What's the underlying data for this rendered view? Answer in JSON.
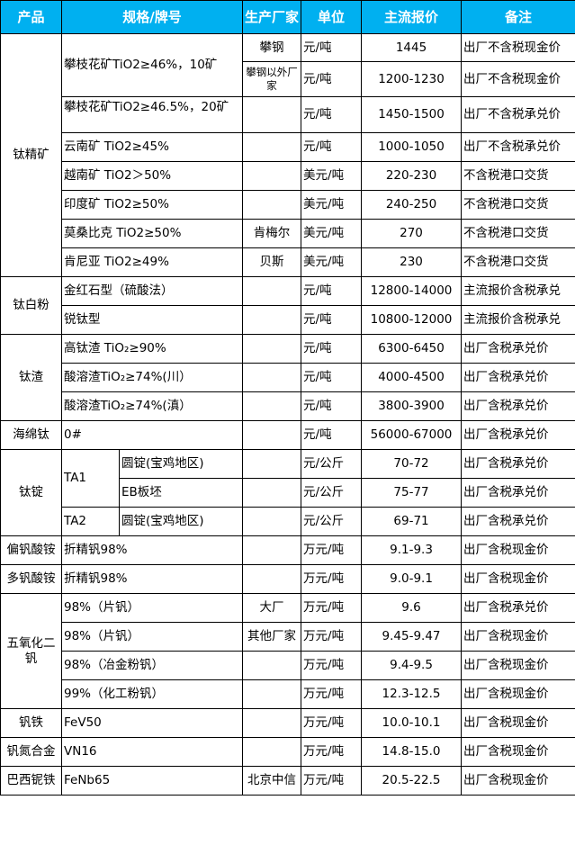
{
  "header": {
    "product": "产品",
    "spec": "规格/牌号",
    "maker": "生产厂家",
    "unit": "单位",
    "price": "主流报价",
    "note": "备注"
  },
  "header_color": "#00b0f0",
  "rows": [
    {
      "product": "钛精矿",
      "spec": "攀枝花矿TiO2≥46%，10矿",
      "maker": "攀钢",
      "unit": "元/吨",
      "price": "1445",
      "note": "出厂不含税现金价"
    },
    {
      "maker": "攀钢以外厂家",
      "unit": "元/吨",
      "price": "1200-1230",
      "note": "出厂不含税现金价"
    },
    {
      "spec": "攀枝花矿TiO2≥46.5%，20矿",
      "maker": "",
      "unit": "元/吨",
      "price": "1450-1500",
      "note": "出厂不含税承兑价"
    },
    {
      "spec": "云南矿 TiO2≥45%",
      "maker": "",
      "unit": "元/吨",
      "price": "1000-1050",
      "note": "出厂不含税承兑价"
    },
    {
      "spec": "越南矿 TiO2＞50%",
      "maker": "",
      "unit": "美元/吨",
      "price": "220-230",
      "note": "不含税港口交货"
    },
    {
      "spec": "印度矿 TiO2≥50%",
      "maker": "",
      "unit": "美元/吨",
      "price": "240-250",
      "note": "不含税港口交货"
    },
    {
      "spec": "莫桑比克 TiO2≥50%",
      "maker": "肯梅尔",
      "unit": "美元/吨",
      "price": "270",
      "note": "不含税港口交货"
    },
    {
      "spec": "肯尼亚 TiO2≥49%",
      "maker": "贝斯",
      "unit": "美元/吨",
      "price": "230",
      "note": "不含税港口交货"
    },
    {
      "product": "钛白粉",
      "spec": "金红石型（硫酸法）",
      "maker": "",
      "unit": "元/吨",
      "price": "12800-14000",
      "note": "主流报价含税承兑"
    },
    {
      "spec": "锐钛型",
      "maker": "",
      "unit": "元/吨",
      "price": "10800-12000",
      "note": "主流报价含税承兑"
    },
    {
      "product": "钛渣",
      "spec": "高钛渣 TiO₂≥90%",
      "maker": "",
      "unit": "元/吨",
      "price": "6300-6450",
      "note": "出厂含税承兑价"
    },
    {
      "spec": "酸溶渣TiO₂≥74%(川）",
      "maker": "",
      "unit": "元/吨",
      "price": "4000-4500",
      "note": "出厂含税承兑价"
    },
    {
      "spec": "酸溶渣TiO₂≥74%(滇）",
      "maker": "",
      "unit": "元/吨",
      "price": "3800-3900",
      "note": "出厂含税承兑价"
    },
    {
      "product": "海绵钛",
      "spec": "0#",
      "maker": "",
      "unit": "元/吨",
      "price": "56000-67000",
      "note": "出厂含税承兑价"
    },
    {
      "product": "钛锭",
      "grade": "TA1",
      "spec": "圆锭(宝鸡地区)",
      "maker": "",
      "unit": "元/公斤",
      "price": "70-72",
      "note": "出厂含税承兑价"
    },
    {
      "spec": "EB板坯",
      "maker": "",
      "unit": "元/公斤",
      "price": "75-77",
      "note": "出厂含税承兑价"
    },
    {
      "grade": "TA2",
      "spec": "圆锭(宝鸡地区)",
      "maker": "",
      "unit": "元/公斤",
      "price": "69-71",
      "note": "出厂含税承兑价"
    },
    {
      "product": "偏钒酸铵",
      "spec": "折精钒98%",
      "maker": "",
      "unit": "万元/吨",
      "price": "9.1-9.3",
      "note": "出厂含税现金价"
    },
    {
      "product": "多钒酸铵",
      "spec": "折精钒98%",
      "maker": "",
      "unit": "万元/吨",
      "price": "9.0-9.1",
      "note": "出厂含税现金价"
    },
    {
      "product": "五氧化二钒",
      "spec": "98%（片钒）",
      "maker": "大厂",
      "unit": "万元/吨",
      "price": "9.6",
      "note": "出厂含税承兑价"
    },
    {
      "spec": "98%（片钒）",
      "maker": "其他厂家",
      "unit": "万元/吨",
      "price": "9.45-9.47",
      "note": "出厂含税现金价"
    },
    {
      "spec": "98%（冶金粉钒）",
      "maker": "",
      "unit": "万元/吨",
      "price": "9.4-9.5",
      "note": "出厂含税现金价"
    },
    {
      "spec": "99%（化工粉钒）",
      "maker": "",
      "unit": "万元/吨",
      "price": "12.3-12.5",
      "note": "出厂含税现金价"
    },
    {
      "product": "钒铁",
      "spec": "FeV50",
      "maker": "",
      "unit": "万元/吨",
      "price": "10.0-10.1",
      "note": "出厂含税现金价"
    },
    {
      "product": "钒氮合金",
      "spec": "VN16",
      "maker": "",
      "unit": "万元/吨",
      "price": "14.8-15.0",
      "note": "出厂含税现金价"
    },
    {
      "product": "巴西铌铁",
      "spec": "FeNb65",
      "maker": "北京中信",
      "unit": "万元/吨",
      "price": "20.5-22.5",
      "note": "出厂含税现金价"
    }
  ]
}
